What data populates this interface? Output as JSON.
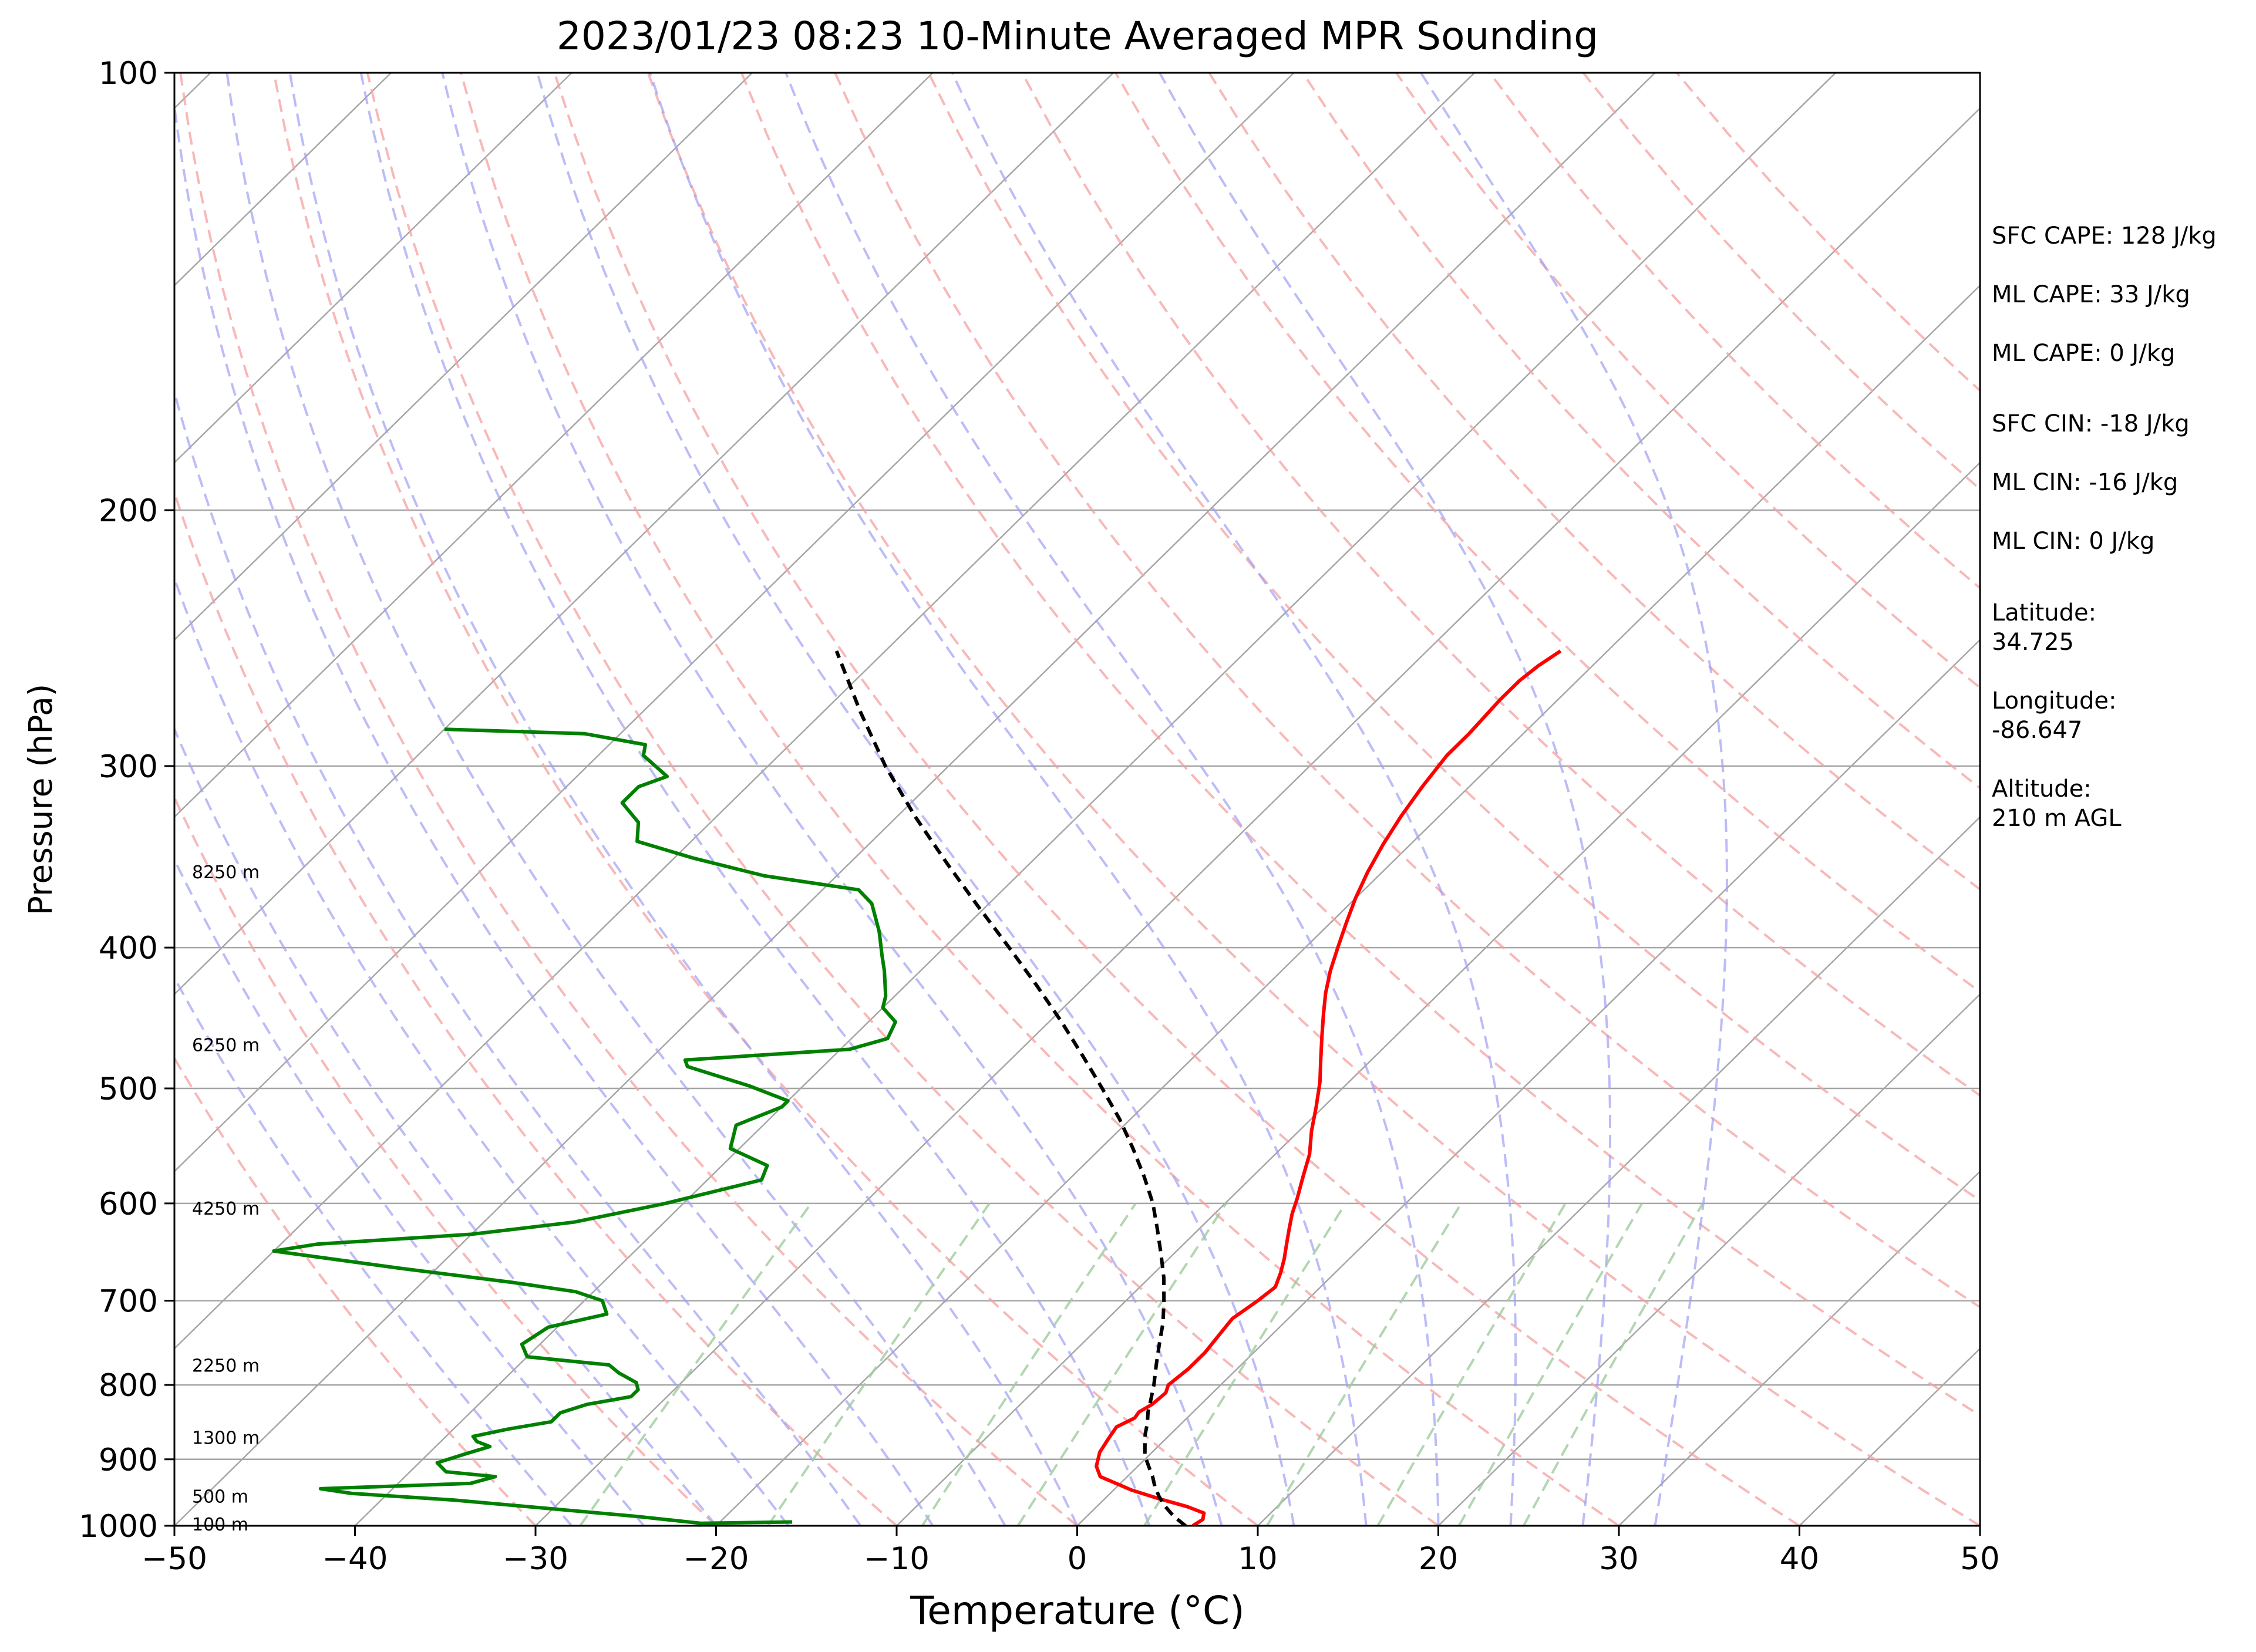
{
  "chart_data": {
    "type": "line",
    "title": "2023/01/23 08:23 10-Minute Averaged MPR Sounding",
    "xlabel": "Temperature (°C)",
    "ylabel": "Pressure (hPa)",
    "xlim": [
      -50,
      50
    ],
    "ylim": [
      1000,
      100
    ],
    "y_scale": "log",
    "x_ticks": [
      -50,
      -40,
      -30,
      -20,
      -10,
      0,
      10,
      20,
      30,
      40,
      50
    ],
    "x_tick_labels": [
      "−50",
      "−40",
      "−30",
      "−20",
      "−10",
      "0",
      "10",
      "20",
      "30",
      "40",
      "50"
    ],
    "y_ticks": [
      1000,
      900,
      800,
      700,
      600,
      500,
      400,
      300,
      200,
      100
    ],
    "y_tick_labels": [
      "1000",
      "900",
      "800",
      "700",
      "600",
      "500",
      "400",
      "300",
      "200",
      "100"
    ],
    "grid": true,
    "skew_deg_per_decade": 82,
    "series": [
      {
        "role": "temperature",
        "color": "#ff0000",
        "points": [
          [
            6.4,
            1000
          ],
          [
            6.6,
            990
          ],
          [
            6.3,
            980
          ],
          [
            5,
            970
          ],
          [
            3,
            958
          ],
          [
            1,
            945
          ],
          [
            -1.5,
            925
          ],
          [
            -2.3,
            910
          ],
          [
            -2.9,
            890
          ],
          [
            -3.2,
            870
          ],
          [
            -3.4,
            855
          ],
          [
            -2.9,
            843
          ],
          [
            -3,
            835
          ],
          [
            -2.7,
            825
          ],
          [
            -2.6,
            810
          ],
          [
            -2.9,
            800
          ],
          [
            -2.7,
            780
          ],
          [
            -2.7,
            760
          ],
          [
            -2.9,
            740
          ],
          [
            -3.1,
            720
          ],
          [
            -2.7,
            700
          ],
          [
            -2.5,
            685
          ],
          [
            -3,
            670
          ],
          [
            -3.6,
            655
          ],
          [
            -4.3,
            640
          ],
          [
            -5,
            625
          ],
          [
            -5.7,
            610
          ],
          [
            -6.3,
            595
          ],
          [
            -7.2,
            575
          ],
          [
            -8.1,
            555
          ],
          [
            -9.3,
            535
          ],
          [
            -10.4,
            515
          ],
          [
            -11.6,
            495
          ],
          [
            -12.8,
            478
          ],
          [
            -14.1,
            460
          ],
          [
            -15.2,
            445
          ],
          [
            -16.3,
            430
          ],
          [
            -17.3,
            415
          ],
          [
            -18.2,
            400
          ],
          [
            -19.1,
            385
          ],
          [
            -20,
            370
          ],
          [
            -20.8,
            355
          ],
          [
            -21.5,
            340
          ],
          [
            -22.1,
            325
          ],
          [
            -22.6,
            310
          ],
          [
            -23,
            295
          ],
          [
            -23,
            285
          ],
          [
            -23.2,
            270
          ],
          [
            -23.2,
            262
          ],
          [
            -23,
            256
          ],
          [
            -22.6,
            250
          ]
        ]
      },
      {
        "role": "dewpoint",
        "color": "#008000",
        "points": [
          [
            -16,
            994
          ],
          [
            -21,
            996
          ],
          [
            -25,
            985
          ],
          [
            -36,
            960
          ],
          [
            -42,
            950
          ],
          [
            -44,
            943
          ],
          [
            -36,
            935
          ],
          [
            -35,
            925
          ],
          [
            -38,
            918
          ],
          [
            -39,
            905
          ],
          [
            -38,
            893
          ],
          [
            -37,
            882
          ],
          [
            -38,
            875
          ],
          [
            -38.5,
            868
          ],
          [
            -37,
            858
          ],
          [
            -35,
            848
          ],
          [
            -35,
            836
          ],
          [
            -34,
            825
          ],
          [
            -32,
            815
          ],
          [
            -32,
            806
          ],
          [
            -32.5,
            797
          ],
          [
            -34,
            785
          ],
          [
            -35,
            775
          ],
          [
            -40,
            765
          ],
          [
            -41,
            750
          ],
          [
            -40.5,
            730
          ],
          [
            -38,
            715
          ],
          [
            -39,
            700
          ],
          [
            -41,
            690
          ],
          [
            -45,
            680
          ],
          [
            -52,
            665
          ],
          [
            -60,
            647
          ],
          [
            -58,
            640
          ],
          [
            -50,
            630
          ],
          [
            -45,
            618
          ],
          [
            -41,
            600
          ],
          [
            -37,
            578
          ],
          [
            -37.5,
            565
          ],
          [
            -40.5,
            550
          ],
          [
            -41.5,
            530
          ],
          [
            -40,
            515
          ],
          [
            -40,
            510
          ],
          [
            -43,
            498
          ],
          [
            -47.5,
            483
          ],
          [
            -48,
            478
          ],
          [
            -39.5,
            470
          ],
          [
            -38,
            462
          ],
          [
            -38.5,
            450
          ],
          [
            -40,
            440
          ],
          [
            -40.5,
            432
          ],
          [
            -42,
            415
          ],
          [
            -43,
            405
          ],
          [
            -44.5,
            390
          ],
          [
            -46.5,
            373
          ],
          [
            -48,
            365
          ],
          [
            -54,
            357
          ],
          [
            -59,
            347
          ],
          [
            -63,
            338
          ],
          [
            -64,
            328
          ],
          [
            -66,
            318
          ],
          [
            -66,
            310
          ],
          [
            -65,
            305
          ],
          [
            -67.5,
            295
          ],
          [
            -68,
            290
          ],
          [
            -72,
            285
          ],
          [
            -80,
            283
          ]
        ]
      },
      {
        "role": "parcel",
        "color": "#000000",
        "points": [
          [
            6,
            1000
          ],
          [
            4.8,
            985
          ],
          [
            3.8,
            970
          ],
          [
            2.9,
            955
          ],
          [
            2.1,
            940
          ],
          [
            1.4,
            925
          ],
          [
            0.6,
            910
          ],
          [
            -0.2,
            895
          ],
          [
            -0.8,
            880
          ],
          [
            -1.4,
            865
          ],
          [
            -1.9,
            850
          ],
          [
            -2.5,
            835
          ],
          [
            -3,
            820
          ],
          [
            -3.7,
            800
          ],
          [
            -4.7,
            775
          ],
          [
            -5.7,
            750
          ],
          [
            -6.7,
            725
          ],
          [
            -7.9,
            700
          ],
          [
            -9.2,
            675
          ],
          [
            -10.7,
            650
          ],
          [
            -12.3,
            625
          ],
          [
            -14,
            600
          ],
          [
            -16,
            575
          ],
          [
            -18.2,
            550
          ],
          [
            -20.6,
            525
          ],
          [
            -23.3,
            500
          ],
          [
            -26.2,
            475
          ],
          [
            -29.3,
            450
          ],
          [
            -32.7,
            425
          ],
          [
            -36.4,
            400
          ],
          [
            -40.4,
            375
          ],
          [
            -44.6,
            350
          ],
          [
            -49,
            325
          ],
          [
            -53.5,
            300
          ],
          [
            -58,
            275
          ],
          [
            -62.7,
            250
          ]
        ]
      }
    ],
    "height_labels": [
      {
        "text": "8250 m",
        "pressure": 355
      },
      {
        "text": "6250 m",
        "pressure": 467
      },
      {
        "text": "4250 m",
        "pressure": 605
      },
      {
        "text": "2250 m",
        "pressure": 776
      },
      {
        "text": "1300 m",
        "pressure": 870
      },
      {
        "text": "500 m",
        "pressure": 955
      },
      {
        "text": "100 m",
        "pressure": 998
      }
    ],
    "dry_adiabat_thetas_c": [
      -30,
      -20,
      -10,
      0,
      10,
      20,
      30,
      40,
      50,
      60,
      70,
      80,
      90,
      100,
      110,
      120,
      130,
      140,
      150,
      160
    ],
    "moist_adiabat_starts_c": [
      -28,
      -24,
      -20,
      -16,
      -12,
      -8,
      -4,
      0,
      4,
      8,
      12,
      16,
      20,
      24,
      28,
      32
    ],
    "mixing_ratios": [
      0.4,
      1,
      2,
      3,
      5,
      8,
      12,
      16,
      20
    ],
    "grid_colors": {
      "isotherm": "#a6a6a6",
      "isobar": "#a6a6a6",
      "dry_adiabat": "#f5a0a0",
      "moist_adiabat": "#a0a0f5",
      "mixing_ratio": "#9ecc9e"
    }
  },
  "annotations": {
    "sfc_cape": "SFC CAPE: 128 J/kg",
    "ml_cape_1": "ML CAPE: 33 J/kg",
    "ml_cape_2": "ML CAPE: 0 J/kg",
    "sfc_cin": "SFC CIN: -18 J/kg",
    "ml_cin_1": "ML CIN: -16 J/kg",
    "ml_cin_2": "ML CIN: 0 J/kg",
    "latitude_label": "Latitude:",
    "latitude_value": "34.725",
    "longitude_label": "Longitude:",
    "longitude_value": "-86.647",
    "altitude_label": "Altitude:",
    "altitude_value": "210 m AGL"
  }
}
